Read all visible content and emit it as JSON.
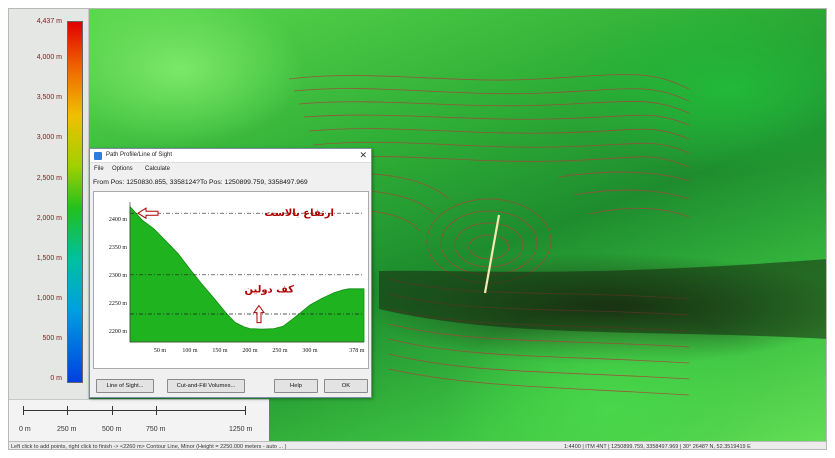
{
  "legend": {
    "ticks": [
      "4,437 m",
      "4,000 m",
      "3,500 m",
      "3,000 m",
      "2,500 m",
      "2,000 m",
      "1,500 m",
      "1,000 m",
      "500 m",
      "0 m"
    ]
  },
  "scalebar": {
    "labels": [
      "0 m",
      "250 m",
      "500 m",
      "750 m",
      "1250 m"
    ]
  },
  "status": {
    "left": "Left click to add points, right click to finish  -> <2260 m> Contour Line, Minor (Height = 2250.000 meters - auto ... )",
    "right": "1:4400  |  ITM 4NT  |  1250899.759, 3358497.969  |  30° 2648? N, 52.3519419 E"
  },
  "dialog": {
    "title": "Path Profile/Line of Sight",
    "menu": [
      "File",
      "Options",
      "Calculate"
    ],
    "coords": "From Pos: 1250830.855, 3358124?To Pos: 1250899.759, 3358497.969",
    "buttons": {
      "line_of_sight": "Line of Sight...",
      "cut_fill": "Cut-and-Fill Volumes...",
      "help": "Help",
      "ok": "OK"
    },
    "annotations": {
      "ballast_height": "ارتفاع بالاست",
      "crater_floor": "کف دولین"
    }
  },
  "colors": {
    "profile_fill": "#1fb31f",
    "annotation_red": "#b00000",
    "contour": "#a8443a"
  },
  "chart_data": {
    "type": "area",
    "title": "",
    "xlabel": "",
    "ylabel": "",
    "x_ticks": [
      "50 m",
      "100 m",
      "150 m",
      "200 m",
      "250 m",
      "300 m",
      "378 m"
    ],
    "y_ticks": [
      "2200 m",
      "2250 m",
      "2300 m",
      "2350 m",
      "2400 m"
    ],
    "xlim": [
      0,
      390
    ],
    "ylim": [
      2180,
      2430
    ],
    "ref_lines": [
      2410,
      2300,
      2230
    ],
    "series": [
      {
        "x": [
          0,
          20,
          40,
          60,
          80,
          100,
          120,
          140,
          160,
          175,
          190,
          200,
          220,
          240,
          255,
          270,
          285,
          300,
          320,
          340,
          355,
          365,
          378,
          390
        ],
        "y": [
          2422,
          2398,
          2382,
          2360,
          2338,
          2310,
          2283,
          2258,
          2232,
          2215,
          2207,
          2204,
          2203,
          2204,
          2208,
          2220,
          2233,
          2246,
          2258,
          2268,
          2273,
          2275,
          2275,
          2275
        ]
      }
    ]
  }
}
